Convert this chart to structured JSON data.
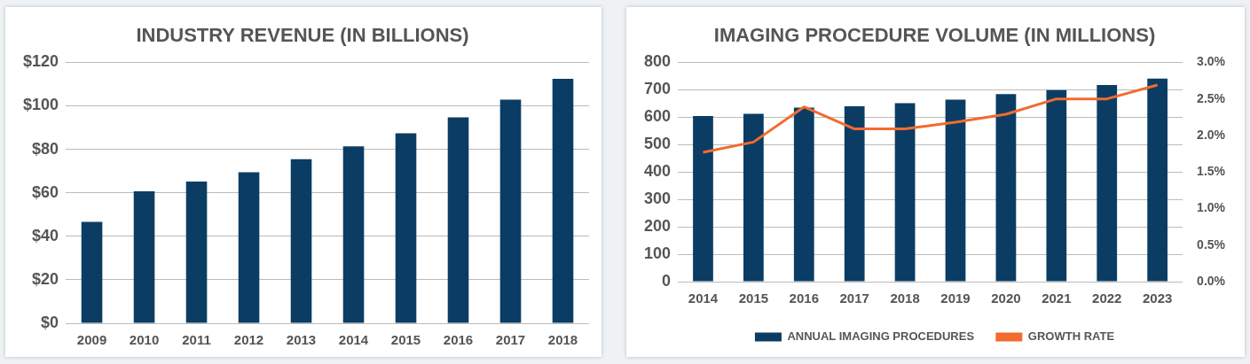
{
  "chart_data": [
    {
      "type": "bar",
      "title": "INDUSTRY REVENUE (IN BILLIONS)",
      "categories": [
        "2009",
        "2010",
        "2011",
        "2012",
        "2013",
        "2014",
        "2015",
        "2016",
        "2017",
        "2018"
      ],
      "series": [
        {
          "color": "#0b3d64",
          "values": [
            46.6,
            60.7,
            65.2,
            69.5,
            75.5,
            81.4,
            87.4,
            94.7,
            102.9,
            112.4
          ]
        }
      ],
      "ylim": [
        0,
        120
      ],
      "yticks": [
        {
          "value": 0,
          "label": "$0"
        },
        {
          "value": 20,
          "label": "$20"
        },
        {
          "value": 40,
          "label": "$40"
        },
        {
          "value": 60,
          "label": "$60"
        },
        {
          "value": 80,
          "label": "$80"
        },
        {
          "value": 100,
          "label": "$100"
        },
        {
          "value": 120,
          "label": "$120"
        }
      ],
      "grid": "y",
      "legend": false
    },
    {
      "type": "bar",
      "title": "IMAGING PROCEDURE VOLUME (IN MILLIONS)",
      "categories": [
        "2014",
        "2015",
        "2016",
        "2017",
        "2018",
        "2019",
        "2020",
        "2021",
        "2022",
        "2023"
      ],
      "series": [
        {
          "name": "ANNUAL IMAGING PROCEDURES",
          "color": "#0b3d64",
          "values": [
            604,
            612,
            635,
            640,
            651,
            664,
            684,
            699,
            717,
            741
          ]
        },
        {
          "name": "GROWTH RATE",
          "type": "line",
          "axis": "y2",
          "color": "#f26b2f",
          "marker": "none",
          "values": [
            1.77,
            1.91,
            2.39,
            2.09,
            2.09,
            2.18,
            2.29,
            2.5,
            2.5,
            2.69
          ]
        }
      ],
      "ylim": [
        0,
        800
      ],
      "yticks": [
        0,
        100,
        200,
        300,
        400,
        500,
        600,
        700,
        800
      ],
      "y2lim": [
        0,
        3
      ],
      "y2ticks": [
        {
          "value": 0,
          "label": "0.0%"
        },
        {
          "value": 0.5,
          "label": "0.5%"
        },
        {
          "value": 1,
          "label": "1.0%"
        },
        {
          "value": 1.5,
          "label": "1.5%"
        },
        {
          "value": 2,
          "label": "2.0%"
        },
        {
          "value": 2.5,
          "label": "2.5%"
        },
        {
          "value": 3,
          "label": "3.0%"
        }
      ],
      "grid": "y",
      "legend": "bottom"
    }
  ]
}
